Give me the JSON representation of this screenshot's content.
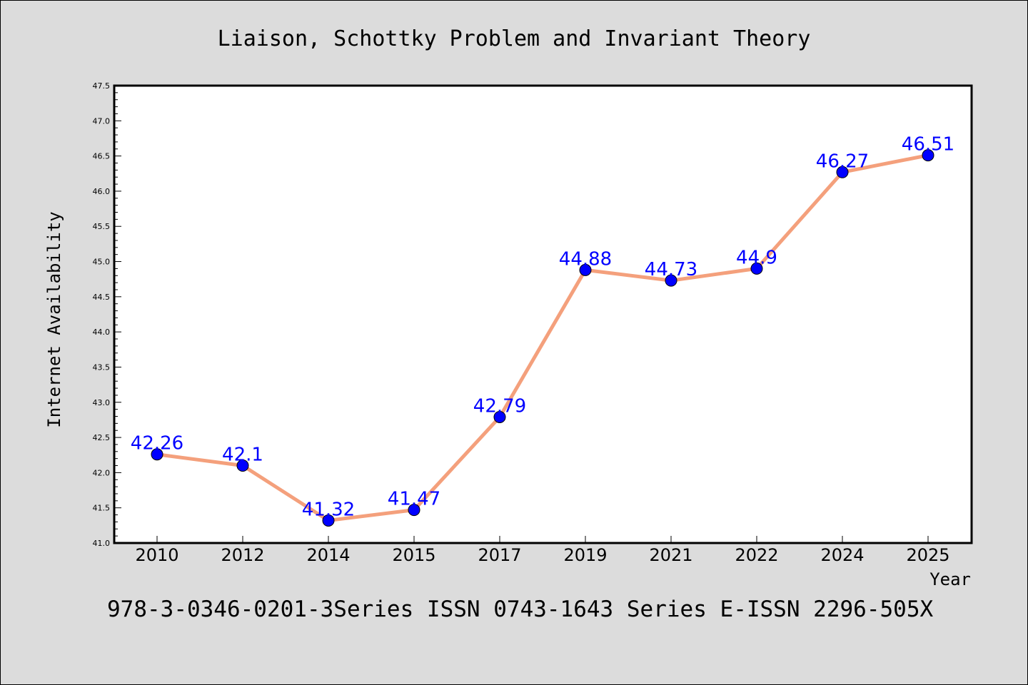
{
  "caption": "978-3-0346-0201-3Series ISSN 0743-1643 Series E-ISSN 2296-505X",
  "colors": {
    "background": "#dcdcdc",
    "plot_background": "#ffffff",
    "line": "#f4a07c",
    "marker": "#0000ff",
    "data_label": "#0000ff"
  },
  "chart_data": {
    "type": "line",
    "title": "Liaison, Schottky Problem and Invariant Theory",
    "xlabel": "Year",
    "ylabel": "Internet Availability",
    "categories": [
      "2010",
      "2012",
      "2014",
      "2015",
      "2017",
      "2019",
      "2021",
      "2022",
      "2024",
      "2025"
    ],
    "series": [
      {
        "values": [
          42.26,
          42.1,
          41.32,
          41.47,
          42.79,
          44.88,
          44.73,
          44.9,
          46.27,
          46.51
        ],
        "labels": [
          "42.26",
          "42.1",
          "41.32",
          "41.47",
          "42.79",
          "44.88",
          "44.73",
          "44.9",
          "46.27",
          "46.51"
        ]
      }
    ],
    "ylim": [
      41.0,
      47.5
    ],
    "yticks": [
      "41.0",
      "41.5",
      "42.0",
      "42.5",
      "43.0",
      "43.5",
      "44.0",
      "44.5",
      "45.0",
      "45.5",
      "46.0",
      "46.5",
      "47.0",
      "47.5"
    ],
    "grid": false,
    "legend": "none"
  }
}
